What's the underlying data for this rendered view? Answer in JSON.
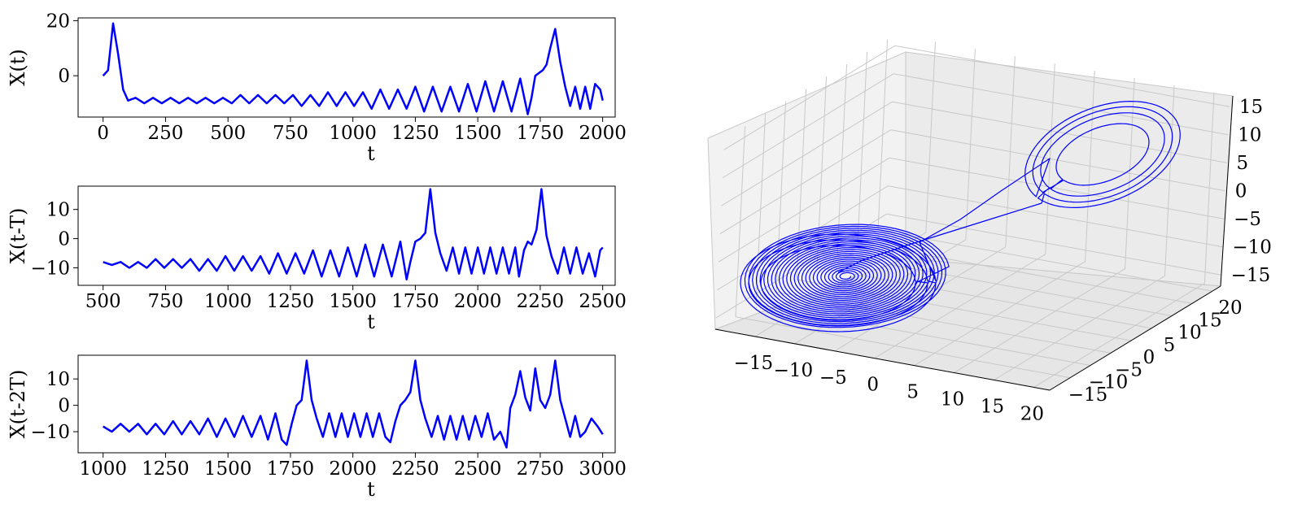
{
  "chart_data": [
    {
      "type": "line",
      "xlabel": "t",
      "ylabel": "X(t)",
      "xlim": [
        -100,
        2050
      ],
      "ylim": [
        -15,
        21
      ],
      "x_ticks": [
        0,
        250,
        500,
        750,
        1000,
        1250,
        1500,
        1750,
        2000
      ],
      "y_ticks": [
        0,
        20
      ],
      "series": [
        {
          "color": "#0000ff",
          "x": [
            0,
            20,
            40,
            60,
            80,
            100,
            130,
            165,
            200,
            235,
            270,
            305,
            340,
            375,
            410,
            445,
            480,
            515,
            550,
            585,
            620,
            655,
            690,
            725,
            760,
            795,
            830,
            865,
            900,
            935,
            970,
            1005,
            1040,
            1075,
            1110,
            1145,
            1180,
            1215,
            1250,
            1285,
            1320,
            1355,
            1390,
            1425,
            1460,
            1495,
            1530,
            1565,
            1600,
            1635,
            1670,
            1700,
            1715,
            1730,
            1745,
            1760,
            1775,
            1790,
            1810,
            1830,
            1850,
            1870,
            1890,
            1910,
            1930,
            1950,
            1970,
            1990,
            2000
          ],
          "values": [
            0,
            2,
            19,
            8,
            -5,
            -9,
            -8,
            -10,
            -8,
            -10,
            -8,
            -10,
            -8,
            -10,
            -8,
            -10,
            -8,
            -10,
            -7,
            -10,
            -7,
            -10,
            -7,
            -10,
            -7,
            -11,
            -7,
            -11,
            -6,
            -11,
            -6,
            -11,
            -6,
            -12,
            -5,
            -12,
            -5,
            -12,
            -4,
            -13,
            -4,
            -13,
            -4,
            -13,
            -3,
            -13,
            -2,
            -13,
            -2,
            -13,
            -1,
            -14,
            -8,
            0,
            1,
            2,
            4,
            10,
            17,
            5,
            -4,
            -11,
            -4,
            -12,
            -4,
            -12,
            -3,
            -5,
            -9
          ]
        }
      ]
    },
    {
      "type": "line",
      "xlabel": "t",
      "ylabel": "X(t-T)",
      "xlim": [
        400,
        2550
      ],
      "ylim": [
        -16,
        18
      ],
      "x_ticks": [
        500,
        750,
        1000,
        1250,
        1500,
        1750,
        2000,
        2250,
        2500
      ],
      "y_ticks": [
        -10,
        0,
        10
      ],
      "series": [
        {
          "color": "#0000ff",
          "x": [
            500,
            535,
            570,
            605,
            640,
            675,
            710,
            745,
            780,
            815,
            850,
            885,
            920,
            955,
            990,
            1025,
            1060,
            1095,
            1130,
            1165,
            1200,
            1235,
            1270,
            1305,
            1340,
            1375,
            1410,
            1445,
            1480,
            1515,
            1550,
            1585,
            1620,
            1655,
            1690,
            1715,
            1730,
            1750,
            1770,
            1790,
            1810,
            1830,
            1850,
            1875,
            1900,
            1925,
            1950,
            1975,
            2000,
            2025,
            2050,
            2075,
            2100,
            2125,
            2150,
            2165,
            2185,
            2200,
            2215,
            2235,
            2255,
            2275,
            2295,
            2320,
            2345,
            2370,
            2395,
            2420,
            2445,
            2470,
            2490,
            2500
          ],
          "values": [
            -8,
            -9,
            -8,
            -10,
            -8,
            -10,
            -7,
            -10,
            -7,
            -10,
            -7,
            -11,
            -7,
            -11,
            -6,
            -11,
            -6,
            -11,
            -6,
            -12,
            -5,
            -12,
            -5,
            -12,
            -4,
            -13,
            -4,
            -13,
            -3,
            -13,
            -2,
            -13,
            -2,
            -13,
            -1,
            -14,
            -8,
            -1,
            0,
            2,
            17,
            2,
            -5,
            -11,
            -3,
            -12,
            -3,
            -12,
            -3,
            -12,
            -3,
            -12,
            -3,
            -12,
            -3,
            -13,
            -4,
            -1,
            -2,
            3,
            17,
            1,
            -6,
            -12,
            -3,
            -12,
            -3,
            -12,
            -5,
            -13,
            -4,
            -3
          ]
        }
      ]
    },
    {
      "type": "line",
      "xlabel": "t",
      "ylabel": "X(t-2T)",
      "xlim": [
        900,
        3050
      ],
      "ylim": [
        -18,
        19
      ],
      "x_ticks": [
        1000,
        1250,
        1500,
        1750,
        2000,
        2250,
        2500,
        2750,
        3000
      ],
      "y_ticks": [
        -10,
        0,
        10
      ],
      "series": [
        {
          "color": "#0000ff",
          "x": [
            1000,
            1035,
            1070,
            1105,
            1140,
            1175,
            1210,
            1245,
            1280,
            1315,
            1350,
            1385,
            1420,
            1455,
            1490,
            1525,
            1560,
            1595,
            1630,
            1660,
            1690,
            1715,
            1735,
            1755,
            1775,
            1795,
            1815,
            1835,
            1855,
            1880,
            1905,
            1930,
            1955,
            1980,
            2005,
            2030,
            2055,
            2080,
            2105,
            2130,
            2150,
            2170,
            2190,
            2210,
            2230,
            2250,
            2270,
            2290,
            2315,
            2340,
            2365,
            2390,
            2415,
            2440,
            2465,
            2490,
            2515,
            2540,
            2565,
            2590,
            2615,
            2630,
            2650,
            2670,
            2690,
            2710,
            2730,
            2750,
            2770,
            2790,
            2810,
            2830,
            2850,
            2870,
            2890,
            2910,
            2930,
            2955,
            2980,
            3000
          ],
          "values": [
            -8,
            -10,
            -7,
            -10,
            -7,
            -11,
            -7,
            -11,
            -6,
            -11,
            -6,
            -11,
            -5,
            -12,
            -5,
            -12,
            -4,
            -12,
            -4,
            -13,
            -3,
            -13,
            -15,
            -7,
            0,
            2,
            17,
            2,
            -5,
            -12,
            -3,
            -12,
            -3,
            -12,
            -3,
            -12,
            -3,
            -12,
            -3,
            -12,
            -14,
            -6,
            0,
            2,
            5,
            17,
            2,
            -5,
            -12,
            -4,
            -13,
            -4,
            -13,
            -4,
            -13,
            -4,
            -12,
            -3,
            -13,
            -10,
            -16,
            -1,
            4,
            13,
            3,
            -2,
            14,
            2,
            -1,
            4,
            17,
            2,
            -5,
            -12,
            -4,
            -12,
            -10,
            -5,
            -8,
            -11
          ]
        }
      ]
    },
    {
      "type": "line",
      "x_ticks": [
        -15,
        -10,
        -5,
        0,
        5,
        10,
        15,
        20
      ],
      "y_ticks": [
        -15,
        -10,
        -5,
        0,
        5,
        10,
        15,
        20
      ],
      "z_ticks": [
        -15,
        -10,
        -5,
        0,
        5,
        10,
        15
      ],
      "series": [
        {
          "color": "#0000ff"
        }
      ]
    }
  ]
}
